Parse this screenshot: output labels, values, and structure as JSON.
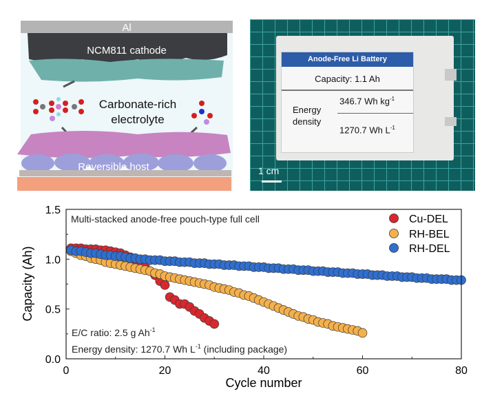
{
  "schematic": {
    "al_label": "Al",
    "cathode_label": "NCM811 cathode",
    "electrolyte_label_line1": "Carbonate-rich",
    "electrolyte_label_line2": "electrolyte",
    "host_label": "Reversible host"
  },
  "photo": {
    "label_header": "Anode-Free Li Battery",
    "capacity_text": "Capacity:  1.1 Ah",
    "energy_label_line1": "Energy",
    "energy_label_line2": "density",
    "gravimetric": "346.7 Wh kg",
    "gravimetric_sup": "-1",
    "volumetric": "1270.7 Wh L",
    "volumetric_sup": "-1",
    "scale_bar": "1 cm",
    "header_color": "#2d5ca8"
  },
  "chart_data": {
    "type": "scatter",
    "xlabel": "Cycle number",
    "ylabel": "Capacity (Ah)",
    "xlim": [
      0,
      80
    ],
    "ylim": [
      0.0,
      1.5
    ],
    "xticks": [
      "0",
      "20",
      "40",
      "60",
      "80"
    ],
    "yticks": [
      "0.0",
      "0.5",
      "1.0",
      "1.5"
    ],
    "grid": false,
    "legend_position": "top-right",
    "annotations": {
      "title": "Multi-stacked anode-free pouch-type full cell",
      "ec_ratio": "E/C ratio: 2.5 g Ah",
      "ec_ratio_sup": "-1",
      "energy_density": "Energy density: 1270.7 Wh L",
      "energy_density_sup": "-1",
      "energy_density_suffix": " (including package)"
    },
    "series": [
      {
        "name": "Cu-DEL",
        "color": "#d9272e",
        "x": [
          1,
          2,
          3,
          4,
          5,
          6,
          7,
          8,
          9,
          10,
          11,
          12,
          13,
          14,
          15,
          16,
          17,
          18,
          19,
          20,
          21,
          22,
          23,
          24,
          25,
          26,
          27,
          28,
          29,
          30
        ],
        "y": [
          1.11,
          1.11,
          1.11,
          1.1,
          1.1,
          1.1,
          1.09,
          1.09,
          1.08,
          1.07,
          1.06,
          1.04,
          1.02,
          0.99,
          0.95,
          0.92,
          0.88,
          0.84,
          0.78,
          0.74,
          0.62,
          0.59,
          0.55,
          0.55,
          0.52,
          0.48,
          0.45,
          0.41,
          0.38,
          0.35
        ]
      },
      {
        "name": "RH-BEL",
        "color": "#f5b04a",
        "x": [
          1,
          2,
          3,
          4,
          5,
          6,
          7,
          8,
          9,
          10,
          11,
          12,
          13,
          14,
          15,
          16,
          17,
          18,
          19,
          20,
          21,
          22,
          23,
          24,
          25,
          26,
          27,
          28,
          29,
          30,
          31,
          32,
          33,
          34,
          35,
          36,
          37,
          38,
          39,
          40,
          41,
          42,
          43,
          44,
          45,
          46,
          47,
          48,
          49,
          50,
          51,
          52,
          53,
          54,
          55,
          56,
          57,
          58,
          59,
          60
        ],
        "y": [
          1.08,
          1.06,
          1.04,
          1.03,
          1.01,
          1.0,
          0.99,
          0.97,
          0.96,
          0.95,
          0.94,
          0.93,
          0.92,
          0.91,
          0.9,
          0.89,
          0.88,
          0.86,
          0.85,
          0.83,
          0.82,
          0.81,
          0.8,
          0.79,
          0.78,
          0.77,
          0.76,
          0.75,
          0.74,
          0.72,
          0.71,
          0.7,
          0.69,
          0.67,
          0.66,
          0.64,
          0.63,
          0.61,
          0.59,
          0.57,
          0.55,
          0.53,
          0.51,
          0.49,
          0.47,
          0.45,
          0.43,
          0.42,
          0.4,
          0.39,
          0.37,
          0.36,
          0.35,
          0.33,
          0.32,
          0.31,
          0.3,
          0.29,
          0.28,
          0.26
        ]
      },
      {
        "name": "RH-DEL",
        "color": "#2f6fd1",
        "x": [
          1,
          2,
          3,
          4,
          5,
          6,
          7,
          8,
          9,
          10,
          11,
          12,
          13,
          14,
          15,
          16,
          17,
          18,
          19,
          20,
          21,
          22,
          23,
          24,
          25,
          26,
          27,
          28,
          29,
          30,
          31,
          32,
          33,
          34,
          35,
          36,
          37,
          38,
          39,
          40,
          41,
          42,
          43,
          44,
          45,
          46,
          47,
          48,
          49,
          50,
          51,
          52,
          53,
          54,
          55,
          56,
          57,
          58,
          59,
          60,
          61,
          62,
          63,
          64,
          65,
          66,
          67,
          68,
          69,
          70,
          71,
          72,
          73,
          74,
          75,
          76,
          77,
          78,
          79,
          80
        ],
        "y": [
          1.09,
          1.08,
          1.08,
          1.07,
          1.06,
          1.06,
          1.05,
          1.04,
          1.04,
          1.03,
          1.03,
          1.02,
          1.01,
          1.01,
          1.0,
          1.0,
          0.99,
          0.99,
          0.99,
          0.98,
          0.98,
          0.98,
          0.97,
          0.97,
          0.97,
          0.96,
          0.96,
          0.96,
          0.95,
          0.95,
          0.95,
          0.94,
          0.94,
          0.94,
          0.93,
          0.93,
          0.93,
          0.92,
          0.92,
          0.92,
          0.91,
          0.91,
          0.91,
          0.9,
          0.9,
          0.9,
          0.89,
          0.89,
          0.89,
          0.88,
          0.88,
          0.88,
          0.87,
          0.87,
          0.87,
          0.86,
          0.86,
          0.86,
          0.85,
          0.85,
          0.85,
          0.84,
          0.84,
          0.84,
          0.83,
          0.83,
          0.83,
          0.82,
          0.82,
          0.82,
          0.81,
          0.81,
          0.81,
          0.8,
          0.8,
          0.8,
          0.8,
          0.79,
          0.79,
          0.79
        ]
      }
    ]
  }
}
